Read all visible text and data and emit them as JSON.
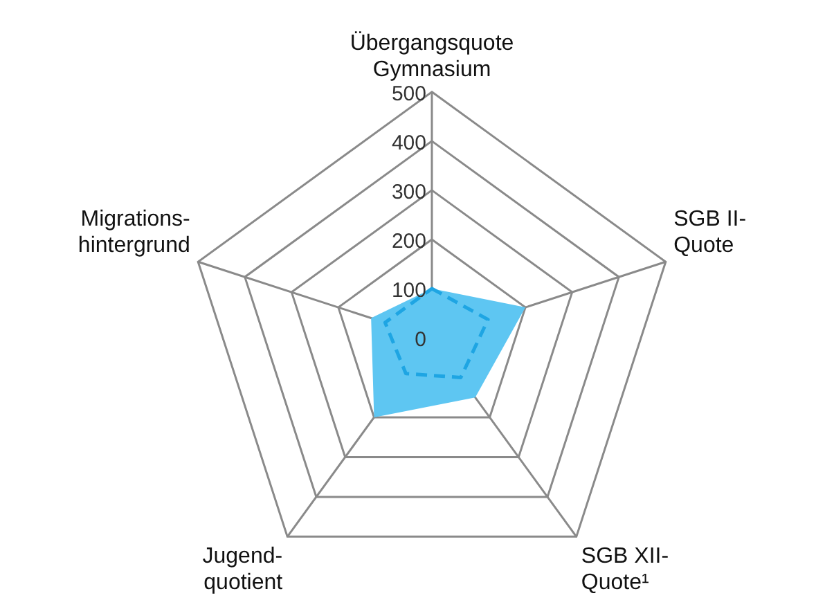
{
  "chart_data": {
    "type": "radar",
    "categories": [
      "Übergangsquote\nGymnasium",
      "SGB II-\nQuote",
      "SGB XII-\nQuote¹",
      "Jugend-\nquotient",
      "Migrations-\nhintergrund"
    ],
    "ylim": [
      0,
      500
    ],
    "yticks": [
      0,
      100,
      200,
      300,
      400,
      500
    ],
    "grid": true,
    "series": [
      {
        "color": "#5ec6f2",
        "values": [
          100,
          200,
          150,
          200,
          130
        ]
      },
      {
        "line_style": "dashed",
        "color": "#1ea5e3",
        "values": [
          100,
          120,
          100,
          90,
          100
        ]
      }
    ]
  }
}
